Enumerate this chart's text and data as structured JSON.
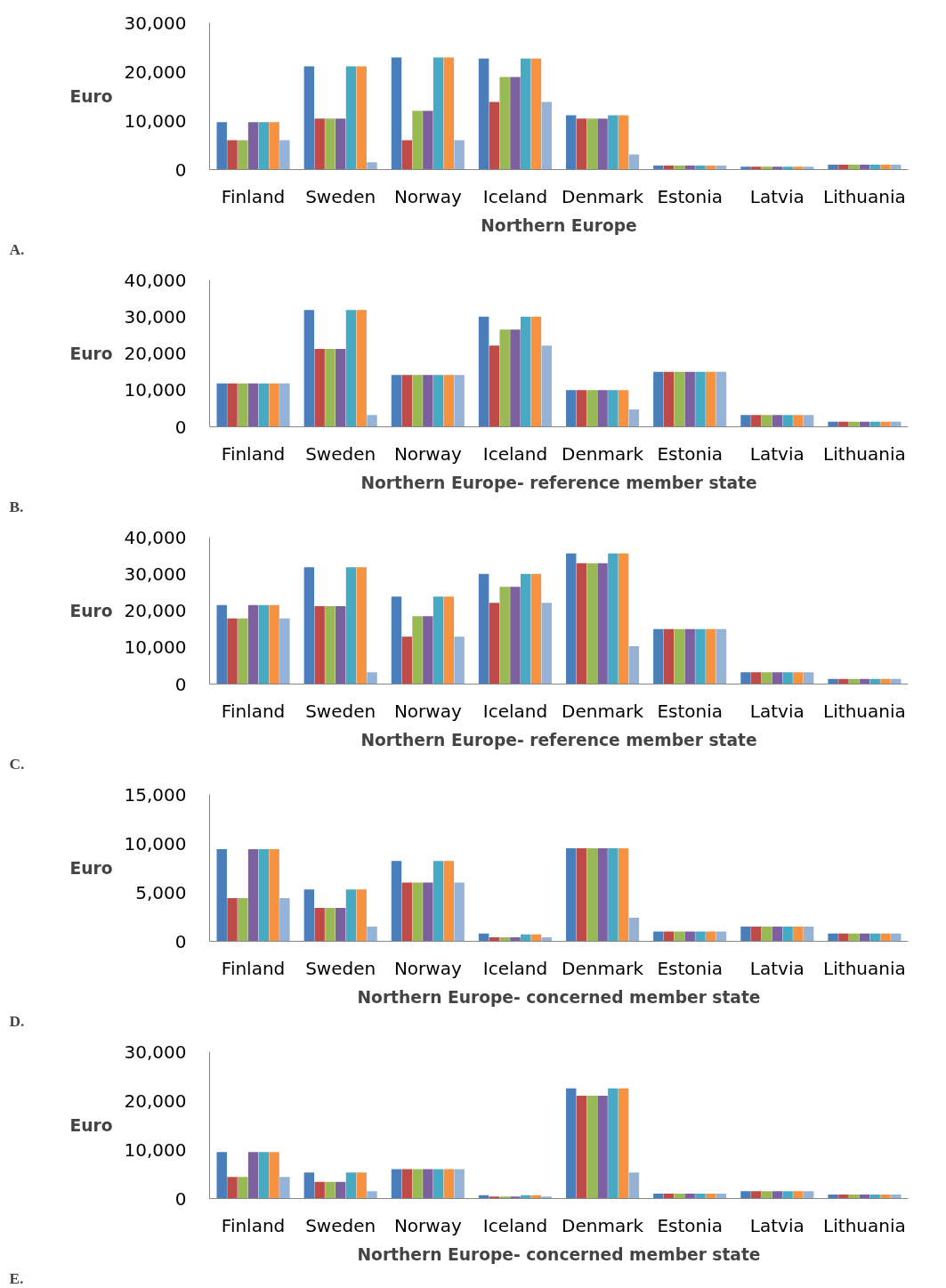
{
  "chart_data": [
    {
      "type": "bar",
      "title": "Northern Europe",
      "ylabel": "Euro",
      "annotations": [
        "A."
      ],
      "grid": false,
      "categories": [
        "Finland",
        "Sweden",
        "Norway",
        "Iceland",
        "Denmark",
        "Estonia",
        "Latvia",
        "Lithuania"
      ],
      "ylim": [
        0,
        30000
      ],
      "yticks": [
        0,
        {
          "value": 10000,
          "label": "10,000"
        },
        {
          "value": 20000,
          "label": "20,000"
        },
        {
          "value": 30000,
          "label": "30,000"
        }
      ],
      "series": [
        {
          "color": "#4a7ebb",
          "values": [
            9700,
            21100,
            22900,
            22700,
            11100,
            800,
            600,
            1000
          ]
        },
        {
          "color": "#be4b48",
          "values": [
            6000,
            10400,
            6000,
            13800,
            10400,
            800,
            600,
            1000
          ]
        },
        {
          "color": "#98b954",
          "values": [
            6000,
            10400,
            12000,
            18900,
            10400,
            800,
            600,
            1000
          ]
        },
        {
          "color": "#7d60a0",
          "values": [
            9700,
            10400,
            12000,
            18900,
            10400,
            800,
            600,
            1000
          ]
        },
        {
          "color": "#46aac5",
          "values": [
            9700,
            21100,
            22900,
            22700,
            11100,
            800,
            600,
            1000
          ]
        },
        {
          "color": "#f69240",
          "values": [
            9700,
            21100,
            22900,
            22700,
            11100,
            800,
            600,
            1000
          ]
        },
        {
          "color": "#95b3d7",
          "values": [
            6000,
            1500,
            6000,
            13800,
            3100,
            800,
            600,
            1000
          ]
        }
      ]
    },
    {
      "type": "bar",
      "title": "Northern Europe- reference member state",
      "ylabel": "Euro",
      "annotations": [
        "B."
      ],
      "grid": false,
      "categories": [
        "Finland",
        "Sweden",
        "Norway",
        "Iceland",
        "Denmark",
        "Estonia",
        "Latvia",
        "Lithuania"
      ],
      "ylim": [
        0,
        40000
      ],
      "yticks": [
        0,
        {
          "value": 10000,
          "label": "10,000"
        },
        {
          "value": 20000,
          "label": "20,000"
        },
        {
          "value": 30000,
          "label": "30,000"
        },
        {
          "value": 40000,
          "label": "40,000"
        }
      ],
      "series": [
        {
          "color": "#4a7ebb",
          "values": [
            11800,
            31800,
            14100,
            30000,
            10000,
            15000,
            3200,
            1400
          ]
        },
        {
          "color": "#be4b48",
          "values": [
            11800,
            21200,
            14100,
            22100,
            10000,
            15000,
            3200,
            1400
          ]
        },
        {
          "color": "#98b954",
          "values": [
            11800,
            21200,
            14100,
            26500,
            10000,
            15000,
            3200,
            1400
          ]
        },
        {
          "color": "#7d60a0",
          "values": [
            11800,
            21200,
            14100,
            26500,
            10000,
            15000,
            3200,
            1400
          ]
        },
        {
          "color": "#46aac5",
          "values": [
            11800,
            31800,
            14100,
            30000,
            10000,
            15000,
            3200,
            1400
          ]
        },
        {
          "color": "#f69240",
          "values": [
            11800,
            31800,
            14100,
            30000,
            10000,
            15000,
            3200,
            1400
          ]
        },
        {
          "color": "#95b3d7",
          "values": [
            11800,
            3200,
            14100,
            22100,
            4700,
            15000,
            3200,
            1400
          ]
        }
      ]
    },
    {
      "type": "bar",
      "title": "Northern Europe- reference member state",
      "ylabel": "Euro",
      "annotations": [
        "C."
      ],
      "grid": false,
      "categories": [
        "Finland",
        "Sweden",
        "Norway",
        "Iceland",
        "Denmark",
        "Estonia",
        "Latvia",
        "Lithuania"
      ],
      "ylim": [
        0,
        40000
      ],
      "yticks": [
        0,
        {
          "value": 10000,
          "label": "10,000"
        },
        {
          "value": 20000,
          "label": "20,000"
        },
        {
          "value": 30000,
          "label": "30,000"
        },
        {
          "value": 40000,
          "label": "40,000"
        }
      ],
      "series": [
        {
          "color": "#4a7ebb",
          "values": [
            21500,
            31800,
            23800,
            30000,
            35600,
            15000,
            3200,
            1400
          ]
        },
        {
          "color": "#be4b48",
          "values": [
            17900,
            21200,
            12900,
            22100,
            32900,
            15000,
            3200,
            1400
          ]
        },
        {
          "color": "#98b954",
          "values": [
            17900,
            21200,
            18500,
            26500,
            32900,
            15000,
            3200,
            1400
          ]
        },
        {
          "color": "#7d60a0",
          "values": [
            21500,
            21200,
            18500,
            26500,
            32900,
            15000,
            3200,
            1400
          ]
        },
        {
          "color": "#46aac5",
          "values": [
            21500,
            31800,
            23800,
            30000,
            35600,
            15000,
            3200,
            1400
          ]
        },
        {
          "color": "#f69240",
          "values": [
            21500,
            31800,
            23800,
            30000,
            35600,
            15000,
            3200,
            1400
          ]
        },
        {
          "color": "#95b3d7",
          "values": [
            17900,
            3200,
            12900,
            22100,
            10300,
            15000,
            3200,
            1400
          ]
        }
      ]
    },
    {
      "type": "bar",
      "title": "Northern Europe- concerned member state",
      "ylabel": "Euro",
      "annotations": [
        "D."
      ],
      "grid": false,
      "categories": [
        "Finland",
        "Sweden",
        "Norway",
        "Iceland",
        "Denmark",
        "Estonia",
        "Latvia",
        "Lithuania"
      ],
      "ylim": [
        0,
        15000
      ],
      "yticks": [
        0,
        {
          "value": 5000,
          "label": "5,000"
        },
        {
          "value": 10000,
          "label": "10,000"
        },
        {
          "value": 15000,
          "label": "15,000"
        }
      ],
      "series": [
        {
          "color": "#4a7ebb",
          "values": [
            9400,
            5300,
            8200,
            800,
            9500,
            1000,
            1500,
            800
          ]
        },
        {
          "color": "#be4b48",
          "values": [
            4400,
            3400,
            6000,
            400,
            9500,
            1000,
            1500,
            800
          ]
        },
        {
          "color": "#98b954",
          "values": [
            4400,
            3400,
            6000,
            400,
            9500,
            1000,
            1500,
            800
          ]
        },
        {
          "color": "#7d60a0",
          "values": [
            9400,
            3400,
            6000,
            400,
            9500,
            1000,
            1500,
            800
          ]
        },
        {
          "color": "#46aac5",
          "values": [
            9400,
            5300,
            8200,
            700,
            9500,
            1000,
            1500,
            800
          ]
        },
        {
          "color": "#f69240",
          "values": [
            9400,
            5300,
            8200,
            700,
            9500,
            1000,
            1500,
            800
          ]
        },
        {
          "color": "#95b3d7",
          "values": [
            4400,
            1500,
            6000,
            400,
            2400,
            1000,
            1500,
            800
          ]
        }
      ]
    },
    {
      "type": "bar",
      "title": "Northern Europe- concerned member state",
      "ylabel": "Euro",
      "annotations": [
        "E."
      ],
      "grid": false,
      "categories": [
        "Finland",
        "Sweden",
        "Norway",
        "Iceland",
        "Denmark",
        "Estonia",
        "Latvia",
        "Lithuania"
      ],
      "ylim": [
        0,
        30000
      ],
      "yticks": [
        0,
        {
          "value": 10000,
          "label": "10,000"
        },
        {
          "value": 20000,
          "label": "20,000"
        },
        {
          "value": 30000,
          "label": "30,000"
        }
      ],
      "series": [
        {
          "color": "#4a7ebb",
          "values": [
            9500,
            5300,
            6000,
            700,
            22500,
            1000,
            1500,
            800
          ]
        },
        {
          "color": "#be4b48",
          "values": [
            4400,
            3400,
            6000,
            400,
            21000,
            1000,
            1500,
            800
          ]
        },
        {
          "color": "#98b954",
          "values": [
            4400,
            3400,
            6000,
            400,
            21000,
            1000,
            1500,
            800
          ]
        },
        {
          "color": "#7d60a0",
          "values": [
            9500,
            3400,
            6000,
            400,
            21000,
            1000,
            1500,
            800
          ]
        },
        {
          "color": "#46aac5",
          "values": [
            9500,
            5300,
            6000,
            700,
            22500,
            1000,
            1500,
            800
          ]
        },
        {
          "color": "#f69240",
          "values": [
            9500,
            5300,
            6000,
            700,
            22500,
            1000,
            1500,
            800
          ]
        },
        {
          "color": "#95b3d7",
          "values": [
            4400,
            1500,
            6000,
            400,
            5300,
            1000,
            1500,
            800
          ]
        }
      ]
    }
  ]
}
